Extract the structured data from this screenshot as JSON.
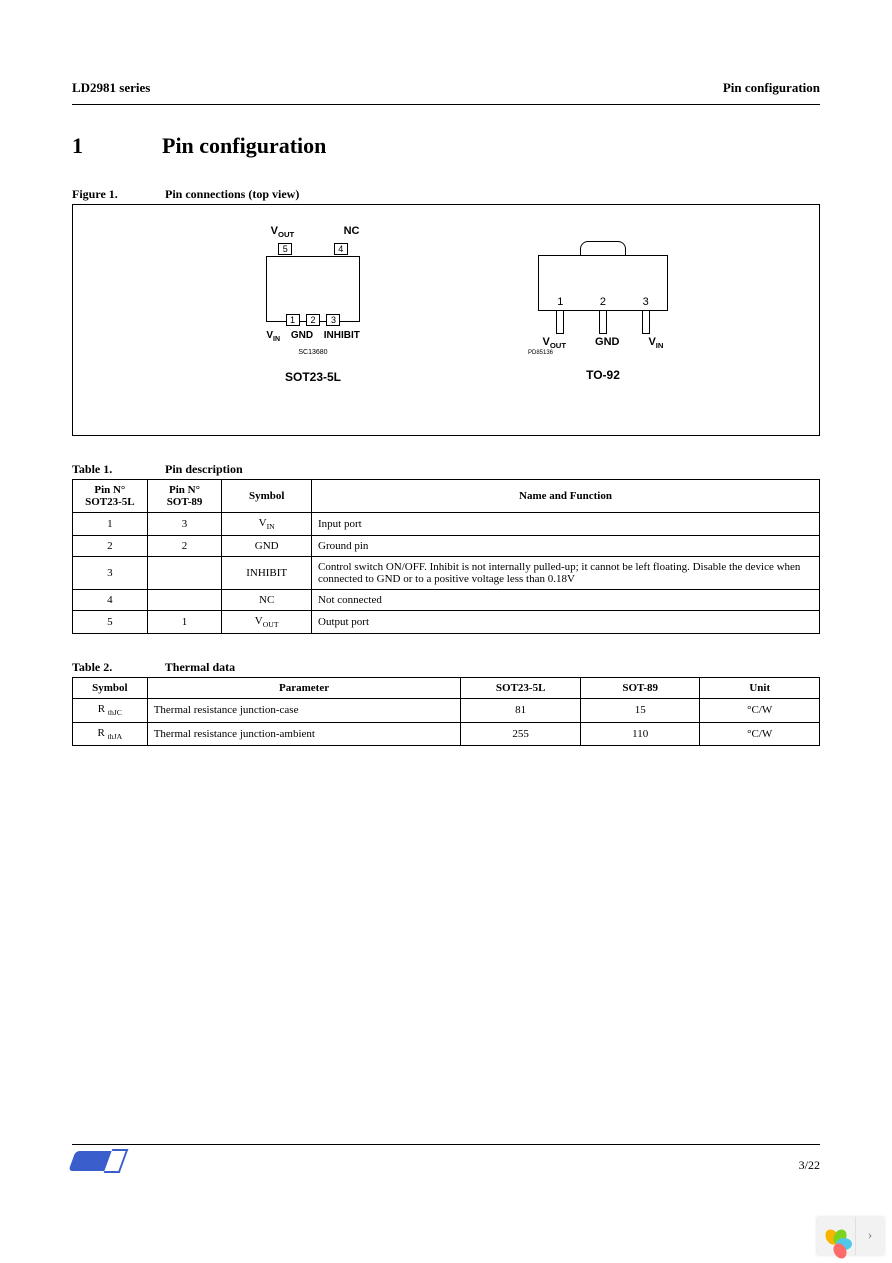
{
  "header": {
    "left": "LD2981 series",
    "right": "Pin configuration"
  },
  "section": {
    "number": "1",
    "title": "Pin configuration"
  },
  "figure1": {
    "caption_label": "Figure 1.",
    "caption_text": "Pin connections (top view)",
    "sot23": {
      "top_label_vout": "V",
      "top_label_vout_sub": "OUT",
      "top_label_nc": "NC",
      "pin_top_5": "5",
      "pin_top_4": "4",
      "pin_bot_1": "1",
      "pin_bot_2": "2",
      "pin_bot_3": "3",
      "bot_label_vin": "V",
      "bot_label_vin_sub": "IN",
      "bot_label_gnd": "GND",
      "bot_label_inhibit": "INHIBIT",
      "footprint_code": "SC13680",
      "package_name": "SOT23-5L"
    },
    "to92": {
      "pin1": "1",
      "pin2": "2",
      "pin3": "3",
      "label_vout": "V",
      "label_vout_sub": "OUT",
      "label_gnd": "GND",
      "label_vin": "V",
      "label_vin_sub": "IN",
      "footprint_code": "PD85136",
      "package_name": "TO-92"
    }
  },
  "table1": {
    "caption_label": "Table 1.",
    "caption_text": "Pin description",
    "headers": {
      "col1a": "Pin N°",
      "col1b": "SOT23-5L",
      "col2a": "Pin N°",
      "col2b": "SOT-89",
      "col3": "Symbol",
      "col4": "Name and Function"
    },
    "rows": [
      {
        "c1": "1",
        "c2": "3",
        "c3_html": "V<span class=\"sub\">IN</span>",
        "c4": "Input port"
      },
      {
        "c1": "2",
        "c2": "2",
        "c3_html": "GND",
        "c4": "Ground pin"
      },
      {
        "c1": "3",
        "c2": "",
        "c3_html": "INHIBIT",
        "c4": "Control switch ON/OFF. Inhibit is not internally pulled-up; it cannot be left floating. Disable the device when connected to GND or to a positive voltage less than 0.18V"
      },
      {
        "c1": "4",
        "c2": "",
        "c3_html": "NC",
        "c4": "Not connected"
      },
      {
        "c1": "5",
        "c2": "1",
        "c3_html": "V<span class=\"sub\">OUT</span>",
        "c4": "Output port"
      }
    ]
  },
  "table2": {
    "caption_label": "Table 2.",
    "caption_text": "Thermal data",
    "headers": {
      "col1": "Symbol",
      "col2": "Parameter",
      "col3": "SOT23-5L",
      "col4": "SOT-89",
      "col5": "Unit"
    },
    "rows": [
      {
        "c1_html": "R <span class=\"sub\">thJC</span>",
        "c2": "Thermal resistance junction-case",
        "c3": "81",
        "c4": "15",
        "c5": "°C/W"
      },
      {
        "c1_html": "R <span class=\"sub\">thJA</span>",
        "c2": "Thermal resistance junction-ambient",
        "c3": "255",
        "c4": "110",
        "c5": "°C/W"
      }
    ]
  },
  "footer": {
    "page_number": "3/22"
  },
  "styling": {
    "colors": {
      "text": "#000000",
      "border": "#000000",
      "background": "#ffffff",
      "st_blue": "#3a5fcd",
      "widget_bg": "#f2f2f2",
      "arrow_color": "#888888",
      "petal_colors": [
        "#f7b500",
        "#7ed321",
        "#50c8e8",
        "#ff6b6b"
      ]
    },
    "fonts": {
      "body_family": "Times New Roman",
      "diagram_family": "Arial",
      "section_title_size_pt": 16,
      "caption_size_pt": 9,
      "table_size_pt": 8
    },
    "col_widths_table1": [
      "10%",
      "10%",
      "12%",
      "68%"
    ],
    "col_widths_table2": [
      "10%",
      "42%",
      "16%",
      "16%",
      "16%"
    ]
  },
  "widget": {
    "arrow_glyph": "›"
  }
}
